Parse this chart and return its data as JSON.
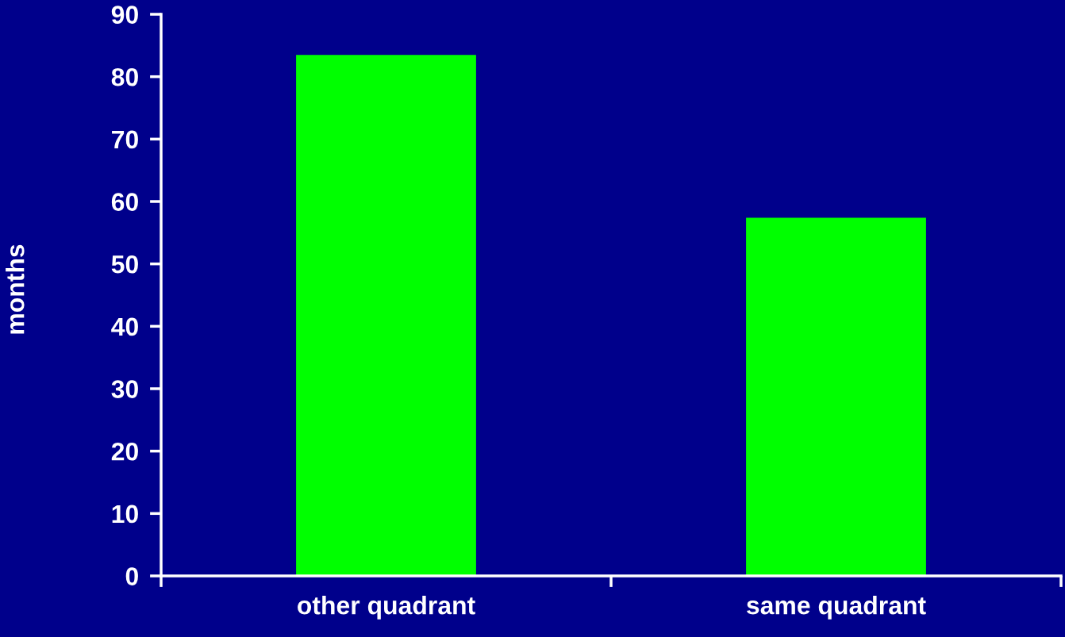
{
  "chart_data": {
    "type": "bar",
    "ylabel": "months",
    "categories": [
      "other quadrant",
      "same quadrant"
    ],
    "values": [
      83.5,
      57.4
    ],
    "color": "#00ff00",
    "ylim": [
      0,
      90
    ],
    "yticks": [
      0,
      10,
      20,
      30,
      40,
      50,
      60,
      70,
      80,
      90
    ],
    "grid": false,
    "legend": false
  }
}
